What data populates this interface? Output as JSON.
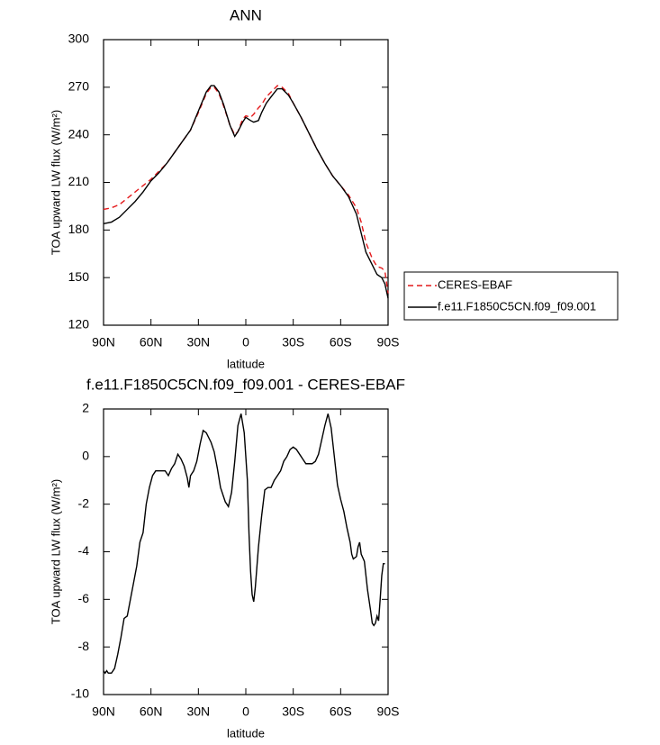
{
  "chart_data": [
    {
      "type": "line",
      "title": "ANN",
      "xlabel": "latitude",
      "ylabel": "TOA upward LW flux (W/m²)",
      "x": [
        90,
        85,
        80,
        75,
        70,
        65,
        60,
        55,
        50,
        45,
        40,
        35,
        30,
        25,
        22,
        20,
        17,
        14,
        10,
        7,
        5,
        2,
        0,
        -3,
        -5,
        -8,
        -10,
        -13,
        -16,
        -20,
        -23,
        -27,
        -30,
        -35,
        -40,
        -45,
        -50,
        -55,
        -60,
        -65,
        -70,
        -73,
        -76,
        -80,
        -83,
        -86,
        -88,
        -90
      ],
      "series": [
        {
          "name": "CERES-EBAF",
          "color": "#e41a1c",
          "dash": true,
          "values": [
            193,
            194,
            196,
            200,
            204,
            208,
            212,
            217,
            222,
            229,
            236,
            243,
            254,
            266,
            270,
            270,
            266,
            258,
            246,
            240,
            242,
            250,
            252,
            251,
            253,
            257,
            259,
            264,
            267,
            271,
            270,
            266,
            260,
            251,
            241,
            231,
            222,
            214,
            208,
            202,
            194,
            185,
            172,
            162,
            157,
            156,
            154,
            140
          ]
        },
        {
          "name": "f.e11.F1850C5CN.f09_f09.001",
          "color": "#000000",
          "dash": false,
          "values": [
            184,
            185,
            188,
            193,
            198,
            204,
            211,
            216,
            222,
            229,
            236,
            243,
            255,
            267,
            271,
            271,
            267,
            259,
            246,
            239,
            242,
            248,
            251,
            249,
            248,
            249,
            254,
            260,
            264,
            269,
            269,
            265,
            260,
            251,
            241,
            231,
            222,
            214,
            208,
            201,
            190,
            178,
            166,
            158,
            152,
            150,
            146,
            137
          ]
        }
      ],
      "xlim": [
        90,
        -90
      ],
      "xticks": [
        {
          "value": 90,
          "label": "90N"
        },
        {
          "value": 60,
          "label": "60N"
        },
        {
          "value": 30,
          "label": "30N"
        },
        0,
        {
          "value": -30,
          "label": "30S"
        },
        {
          "value": -60,
          "label": "60S"
        },
        {
          "value": -90,
          "label": "90S"
        }
      ],
      "ylim": [
        120,
        300
      ],
      "yticks": [
        120,
        150,
        180,
        210,
        240,
        270,
        300
      ],
      "legend": "outside-right"
    },
    {
      "type": "line",
      "title": "f.e11.F1850C5CN.f09_f09.001 - CERES-EBAF",
      "xlabel": "latitude",
      "ylabel": "TOA upward LW flux (W/m²)",
      "x": [
        90,
        89,
        88,
        87,
        85,
        83,
        81,
        79,
        77,
        75,
        73,
        71,
        69,
        67,
        65,
        63,
        61,
        59,
        57,
        54,
        51,
        49,
        47,
        45,
        43,
        41,
        39,
        37,
        36,
        35,
        33,
        31,
        29,
        27,
        25,
        22,
        20,
        18,
        16,
        13,
        11,
        9,
        7,
        5,
        3,
        1,
        -1,
        -2,
        -3,
        -4,
        -5,
        -6,
        -8,
        -10,
        -12,
        -14,
        -16,
        -18,
        -20,
        -22,
        -24,
        -26,
        -28,
        -30,
        -32,
        -34,
        -36,
        -38,
        -40,
        -42,
        -44,
        -46,
        -48,
        -50,
        -52,
        -54,
        -56,
        -58,
        -60,
        -62,
        -64,
        -66,
        -67,
        -68,
        -70,
        -71,
        -72,
        -73,
        -75,
        -77,
        -79,
        -80,
        -81,
        -82,
        -83,
        -84,
        -85,
        -86,
        -87,
        -88
      ],
      "color": "#000000",
      "values": [
        -9.0,
        -9.1,
        -9.0,
        -9.1,
        -9.1,
        -8.9,
        -8.3,
        -7.6,
        -6.8,
        -6.7,
        -6.0,
        -5.3,
        -4.6,
        -3.6,
        -3.2,
        -2.0,
        -1.3,
        -0.8,
        -0.6,
        -0.6,
        -0.6,
        -0.8,
        -0.5,
        -0.3,
        0.1,
        -0.1,
        -0.4,
        -0.9,
        -1.3,
        -0.8,
        -0.6,
        -0.2,
        0.5,
        1.1,
        1.0,
        0.6,
        0.2,
        -0.5,
        -1.3,
        -1.9,
        -2.1,
        -1.5,
        -0.2,
        1.3,
        1.8,
        1.0,
        -1.0,
        -3.2,
        -4.8,
        -5.8,
        -6.1,
        -5.5,
        -3.8,
        -2.5,
        -1.4,
        -1.3,
        -1.3,
        -1.0,
        -0.8,
        -0.6,
        -0.2,
        0.0,
        0.3,
        0.4,
        0.3,
        0.1,
        -0.1,
        -0.3,
        -0.3,
        -0.3,
        -0.2,
        0.1,
        0.7,
        1.3,
        1.8,
        1.2,
        0.0,
        -1.2,
        -1.8,
        -2.3,
        -3.0,
        -3.6,
        -4.1,
        -4.3,
        -4.2,
        -3.8,
        -3.6,
        -4.1,
        -4.4,
        -5.6,
        -6.5,
        -7.0,
        -7.1,
        -7.0,
        -6.7,
        -6.9,
        -6.0,
        -5.0,
        -4.5,
        -4.5
      ],
      "xlim": [
        90,
        -90
      ],
      "xticks": [
        {
          "value": 90,
          "label": "90N"
        },
        {
          "value": 60,
          "label": "60N"
        },
        {
          "value": 30,
          "label": "30N"
        },
        0,
        {
          "value": -30,
          "label": "30S"
        },
        {
          "value": -60,
          "label": "60S"
        },
        {
          "value": -90,
          "label": "90S"
        }
      ],
      "ylim": [
        -10,
        2
      ],
      "yticks": [
        -10,
        -8,
        -6,
        -4,
        -2,
        0,
        2
      ]
    }
  ]
}
